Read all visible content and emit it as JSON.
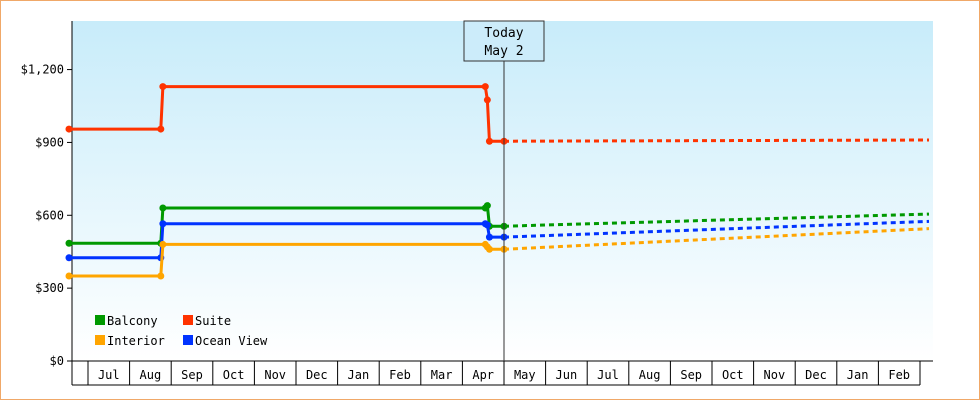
{
  "chart_data": {
    "type": "line",
    "y_axis": {
      "min": 0,
      "max": 1400,
      "ticks": [
        0,
        300,
        600,
        900,
        1200
      ],
      "tick_labels": [
        "$0",
        "$300",
        "$600",
        "$900",
        "$1,200"
      ]
    },
    "x_axis": {
      "month_labels": [
        "Jul",
        "Aug",
        "Sep",
        "Oct",
        "Nov",
        "Dec",
        "Jan",
        "Feb",
        "Mar",
        "Apr",
        "May",
        "Jun",
        "Jul",
        "Aug",
        "Sep",
        "Oct",
        "Nov",
        "Dec",
        "Jan",
        "Feb"
      ]
    },
    "today_marker": {
      "line1": "Today",
      "line2": "May 2",
      "x_month": 10
    },
    "series": [
      {
        "name": "Suite",
        "color": "#ff3300",
        "points": [
          [
            -0.5,
            955
          ],
          [
            1.25,
            955
          ],
          [
            1.3,
            1130
          ],
          [
            9.05,
            1130
          ],
          [
            9.1,
            1075
          ],
          [
            9.15,
            905
          ],
          [
            10.0,
            905
          ]
        ],
        "forecast": [
          [
            10.0,
            905
          ],
          [
            21.0,
            910
          ]
        ]
      },
      {
        "name": "Balcony",
        "color": "#009900",
        "points": [
          [
            -0.5,
            485
          ],
          [
            1.25,
            485
          ],
          [
            1.3,
            630
          ],
          [
            9.05,
            630
          ],
          [
            9.1,
            640
          ],
          [
            9.15,
            555
          ],
          [
            10.0,
            555
          ]
        ],
        "forecast": [
          [
            10.0,
            555
          ],
          [
            21.0,
            605
          ]
        ]
      },
      {
        "name": "Ocean View",
        "color": "#0033ff",
        "points": [
          [
            -0.5,
            425
          ],
          [
            1.25,
            425
          ],
          [
            1.3,
            565
          ],
          [
            9.05,
            565
          ],
          [
            9.1,
            560
          ],
          [
            9.15,
            510
          ],
          [
            10.0,
            510
          ]
        ],
        "forecast": [
          [
            10.0,
            510
          ],
          [
            21.0,
            575
          ]
        ]
      },
      {
        "name": "Interior",
        "color": "#ffa500",
        "points": [
          [
            -0.5,
            350
          ],
          [
            1.25,
            350
          ],
          [
            1.3,
            480
          ],
          [
            9.05,
            480
          ],
          [
            9.1,
            470
          ],
          [
            9.15,
            460
          ],
          [
            10.0,
            460
          ]
        ],
        "forecast": [
          [
            10.0,
            460
          ],
          [
            21.0,
            545
          ]
        ]
      }
    ],
    "legend": {
      "placement": "bottom-left",
      "entries": [
        {
          "name": "Balcony",
          "color": "#009900"
        },
        {
          "name": "Suite",
          "color": "#ff3300"
        },
        {
          "name": "Interior",
          "color": "#ffa500"
        },
        {
          "name": "Ocean View",
          "color": "#0033ff"
        }
      ]
    }
  }
}
